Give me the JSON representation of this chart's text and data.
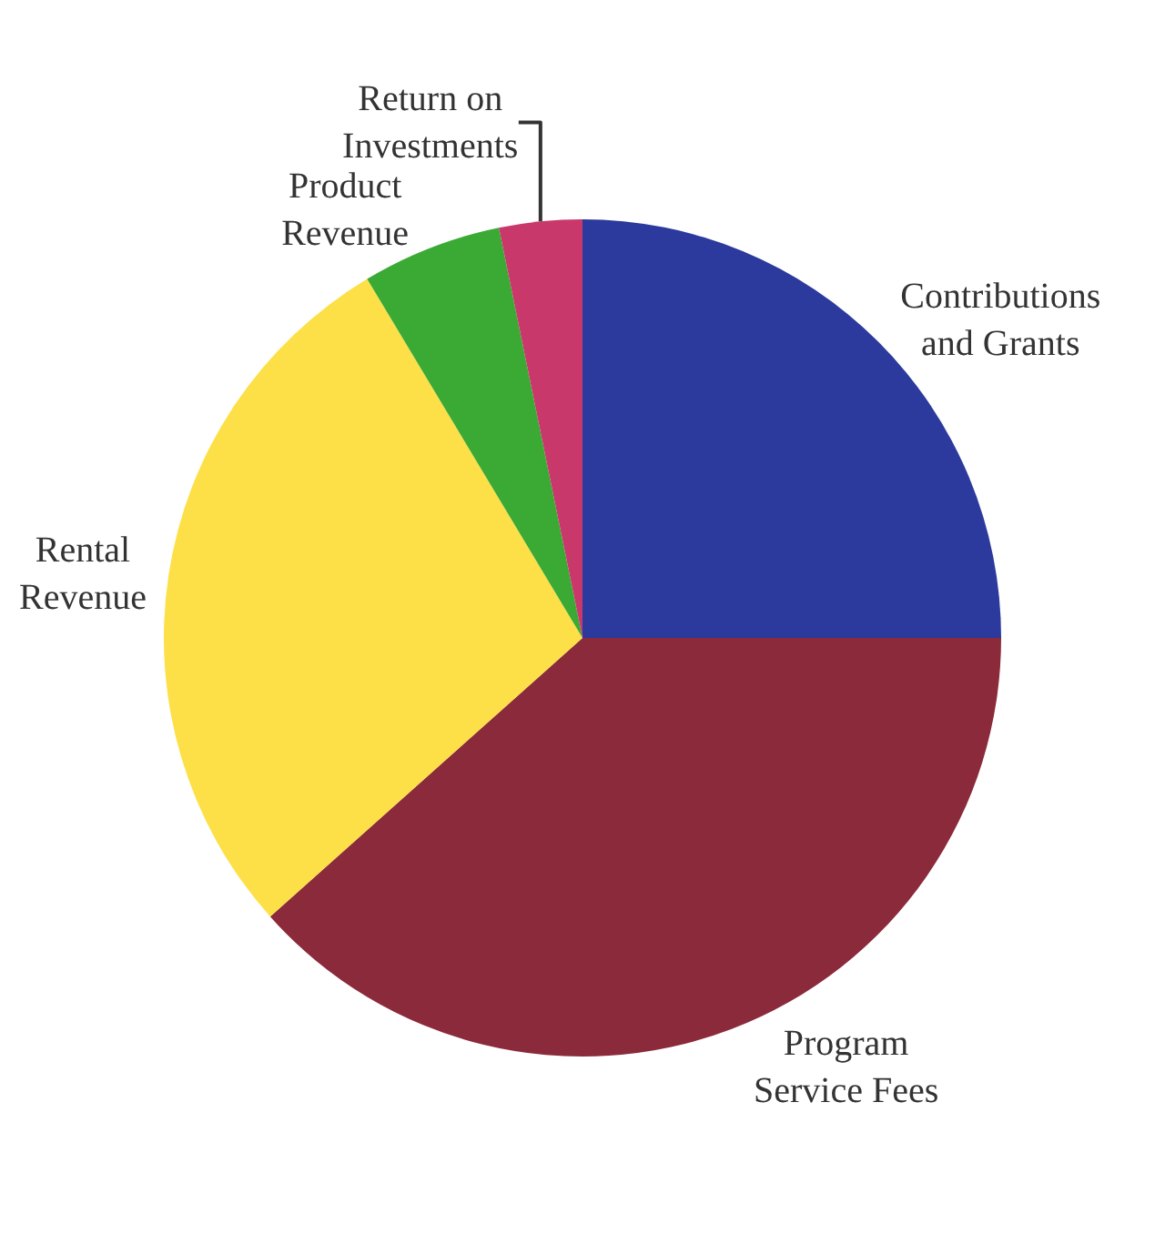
{
  "chart_data": {
    "type": "pie",
    "categories": [
      "Contributions\nand Grants",
      "Program\nService Fees",
      "Rental\nRevenue",
      "Product\nRevenue",
      "Return on\nInvestments"
    ],
    "values": [
      25,
      38.4,
      28,
      5.4,
      3.2
    ],
    "colors": [
      "#2b3a9c",
      "#8b2a3a",
      "#fde047",
      "#3aaa35",
      "#c8386a"
    ],
    "legend": false
  }
}
